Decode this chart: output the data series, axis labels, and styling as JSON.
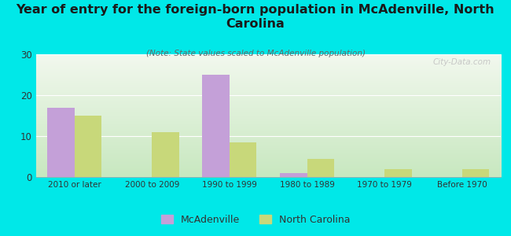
{
  "title": "Year of entry for the foreign-born population in McAdenville, North\nCarolina",
  "subtitle": "(Note: State values scaled to McAdenville population)",
  "categories": [
    "2010 or later",
    "2000 to 2009",
    "1990 to 1999",
    "1980 to 1989",
    "1970 to 1979",
    "Before 1970"
  ],
  "mcadenville_values": [
    17,
    0,
    25,
    1,
    0,
    0
  ],
  "nc_values": [
    15,
    11,
    8.5,
    4.5,
    2,
    2
  ],
  "mcadenville_color": "#c4a0d8",
  "nc_color": "#c8d87a",
  "background_color": "#00e8e8",
  "ylim": [
    0,
    30
  ],
  "yticks": [
    0,
    10,
    20,
    30
  ],
  "bar_width": 0.35,
  "legend_mcadenville": "McAdenville",
  "legend_nc": "North Carolina",
  "watermark": "City-Data.com",
  "title_fontsize": 11.5,
  "subtitle_fontsize": 7.5,
  "tick_fontsize": 7.5,
  "ytick_fontsize": 8.5
}
